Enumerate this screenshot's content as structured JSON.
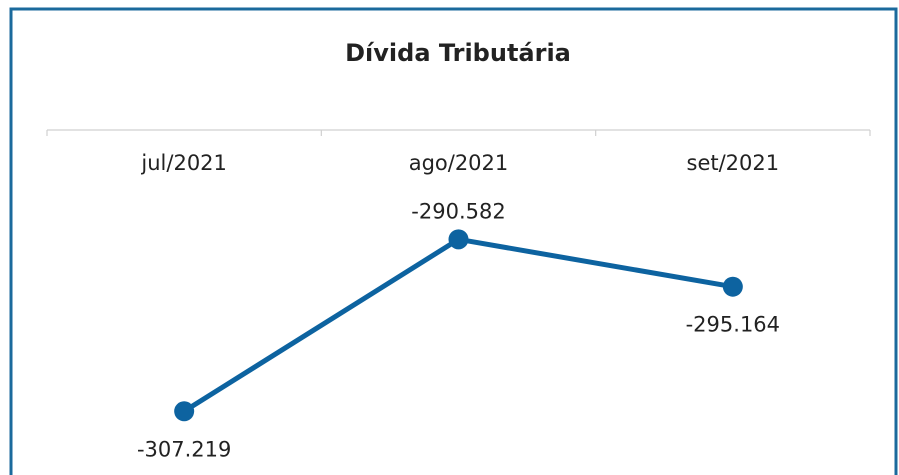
{
  "chart_data": {
    "type": "line",
    "title": "Dívida Tributária",
    "categories": [
      "jul/2021",
      "ago/2021",
      "set/2021"
    ],
    "series": [
      {
        "name": "Dívida Tributária",
        "color": "#0d63a0",
        "values": [
          -307.219,
          -290.582,
          -295.164
        ]
      }
    ],
    "ylim": [
      -313,
      -280
    ]
  }
}
